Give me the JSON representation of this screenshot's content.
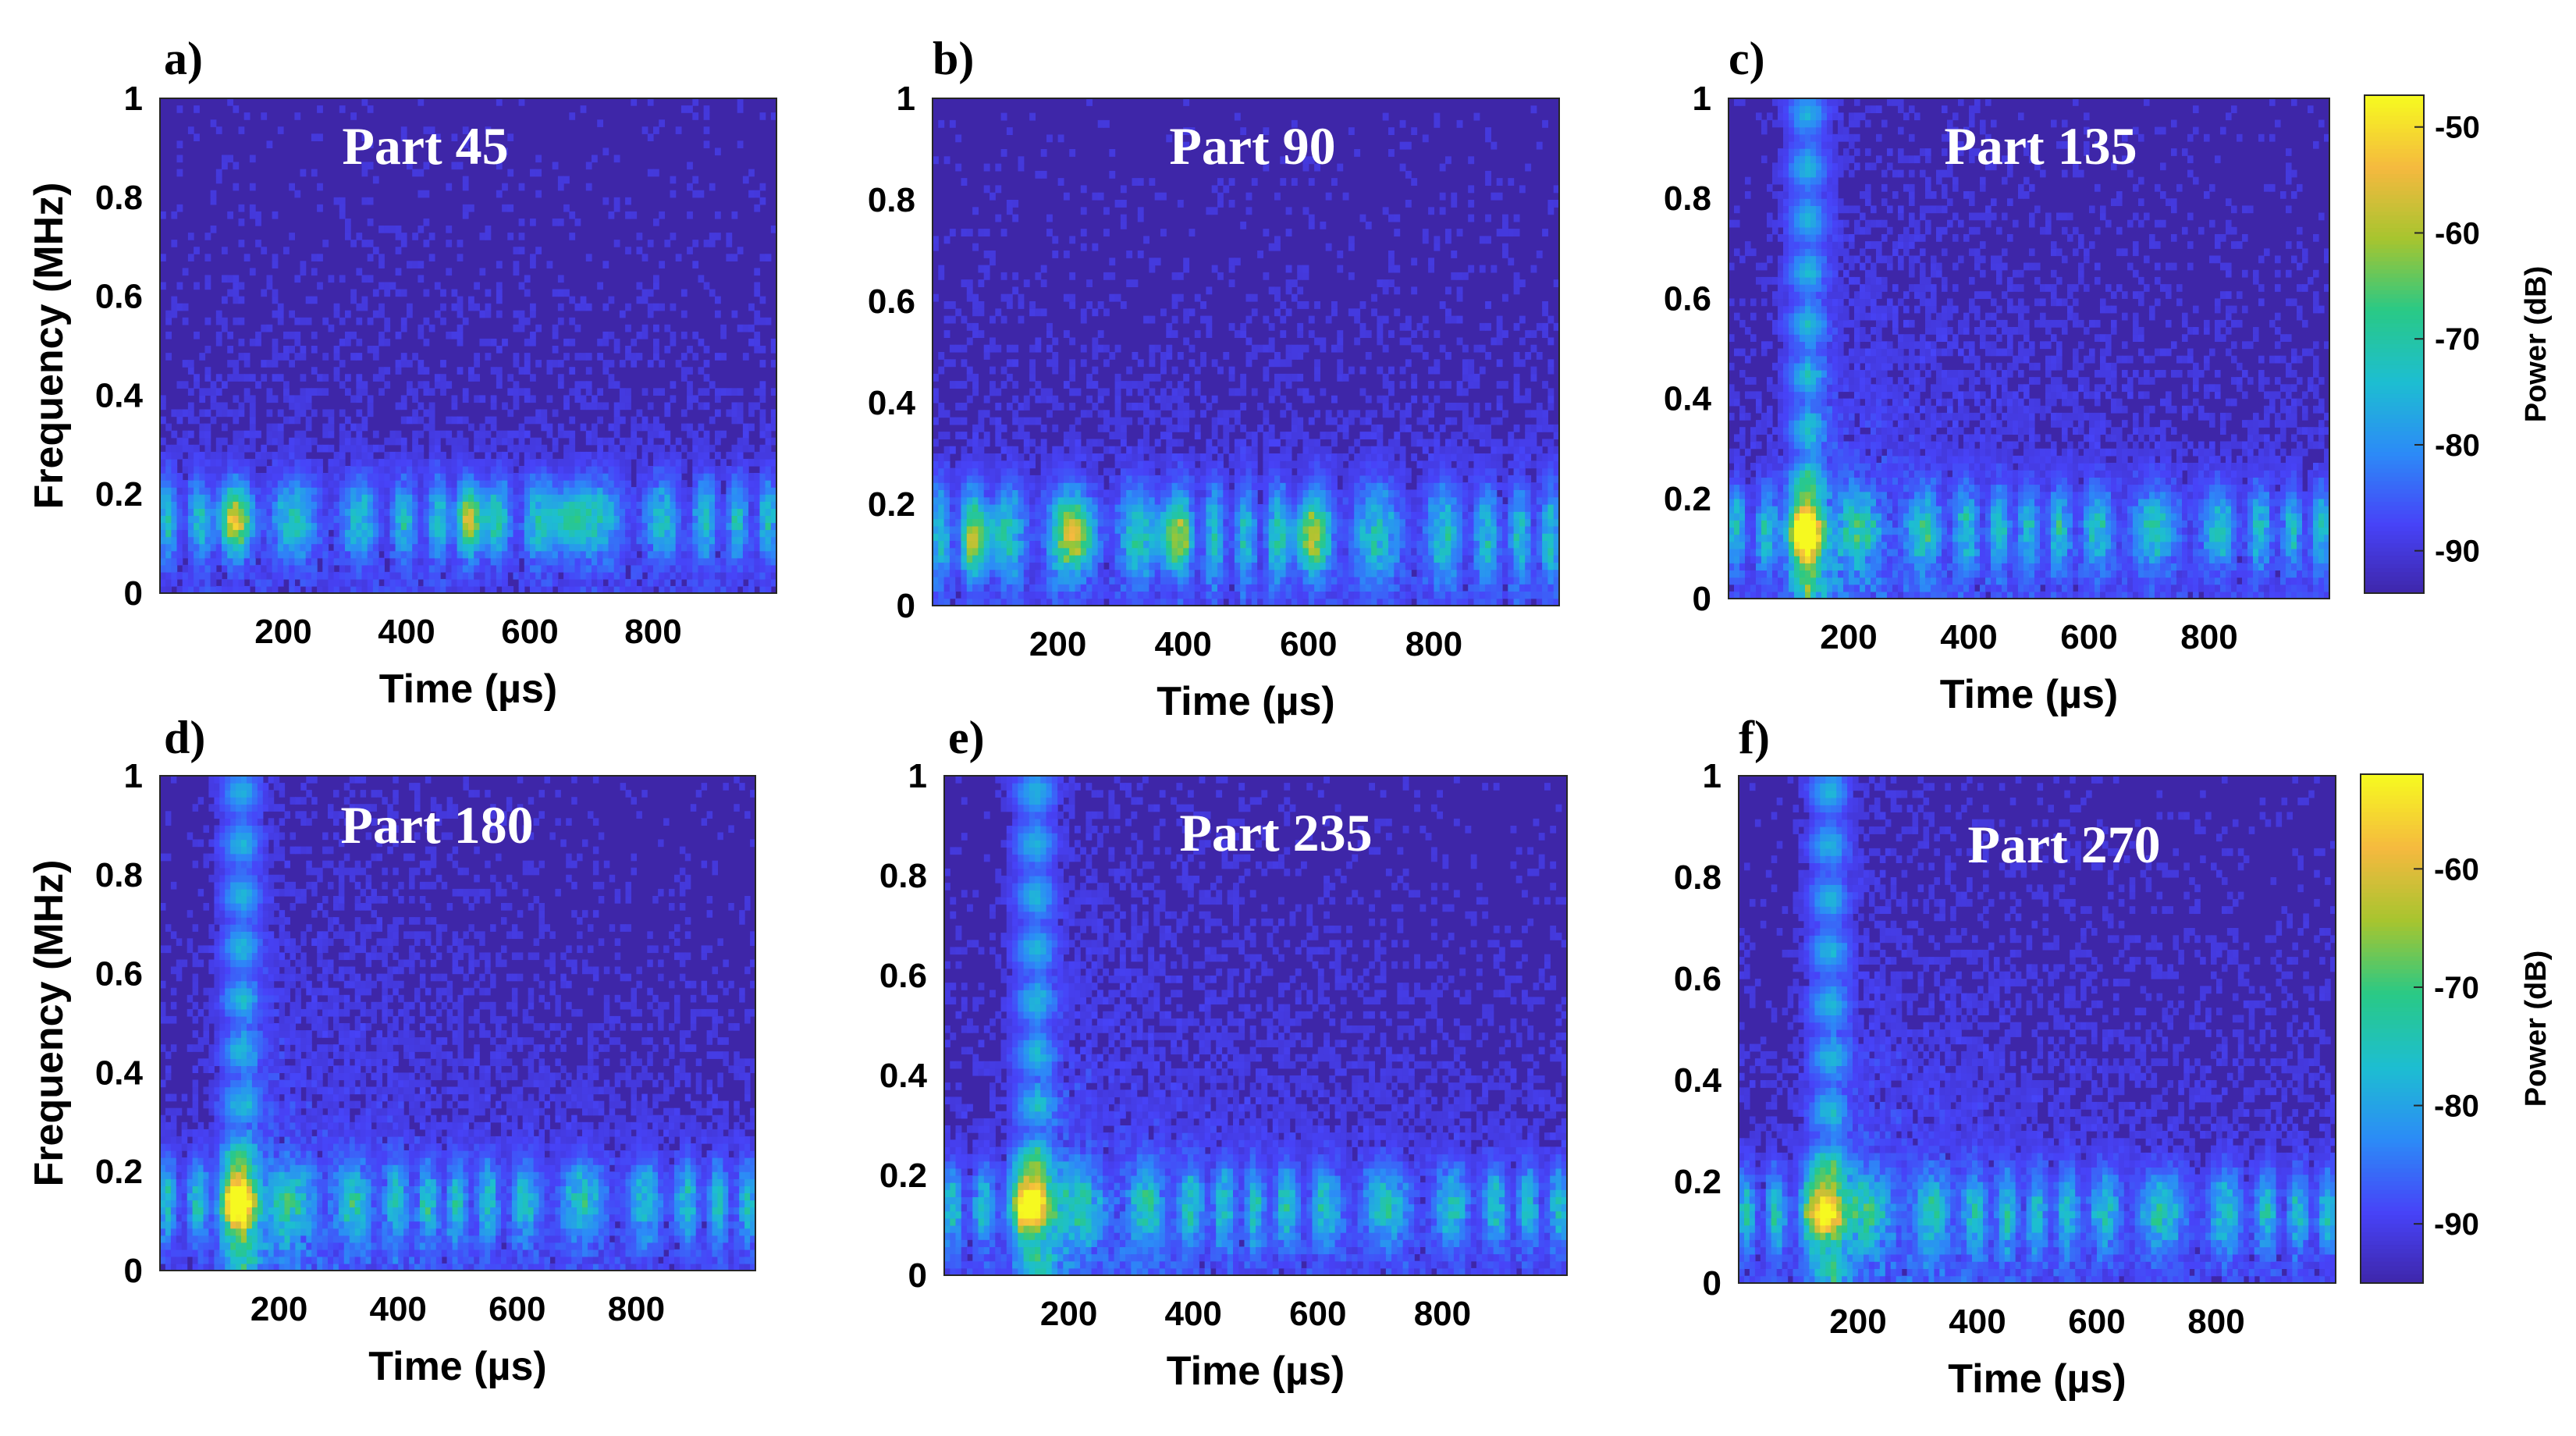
{
  "colormap": [
    "#3e26a8",
    "#4743f8",
    "#2c8bf7",
    "#1dbed1",
    "#29c986",
    "#a6c52f",
    "#f5b93f",
    "#f6f920"
  ],
  "chart_data": [
    {
      "type": "heatmap",
      "panel": "a)",
      "title": "Part 45",
      "xlabel": "Time (µs)",
      "ylabel": "Frequency (MHz)",
      "xlim": [
        0,
        1000
      ],
      "ylim": [
        0,
        1
      ],
      "xticks": [
        "200",
        "400",
        "600",
        "800"
      ],
      "yticks": [
        "0",
        "0.2",
        "0.4",
        "0.6",
        "0.8",
        "1"
      ],
      "series": [
        {
          "pattern": "band",
          "band_center_mhz": 0.15,
          "band_width_mhz": 0.08,
          "peak_time_us": 120
        },
        {
          "pattern": "hotspots",
          "times_us": [
            120,
            510,
            660
          ],
          "frequency_mhz": 0.15
        }
      ]
    },
    {
      "type": "heatmap",
      "panel": "b)",
      "title": "Part 90",
      "xlabel": "Time (µs)",
      "ylabel": "",
      "xlim": [
        0,
        1000
      ],
      "ylim": [
        0,
        1
      ],
      "xticks": [
        "200",
        "400",
        "600",
        "800"
      ],
      "yticks": [
        "0",
        "0.2",
        "0.4",
        "0.6",
        "0.8",
        "1"
      ],
      "series": [
        {
          "pattern": "band",
          "band_center_mhz": 0.14,
          "band_width_mhz": 0.1,
          "peak_time_us": 230
        },
        {
          "pattern": "hotspots",
          "times_us": [
            80,
            230,
            380,
            600
          ],
          "frequency_mhz": 0.14
        }
      ]
    },
    {
      "type": "heatmap",
      "panel": "c)",
      "title": "Part 135",
      "xlabel": "Time (µs)",
      "ylabel": "",
      "xlim": [
        0,
        1000
      ],
      "ylim": [
        0,
        1
      ],
      "xticks": [
        "200",
        "400",
        "600",
        "800"
      ],
      "yticks": [
        "0",
        "0.2",
        "0.4",
        "0.6",
        "0.8",
        "1"
      ],
      "series": [
        {
          "pattern": "burst",
          "burst_time_us": 130,
          "burst_frequency_mhz": 0.13
        },
        {
          "pattern": "band",
          "band_center_mhz": 0.14,
          "band_width_mhz": 0.08
        }
      ]
    },
    {
      "type": "heatmap",
      "panel": "d)",
      "title": "Part 180",
      "xlabel": "Time (µs)",
      "ylabel": "Frequency (MHz)",
      "xlim": [
        0,
        1000
      ],
      "ylim": [
        0,
        1
      ],
      "xticks": [
        "200",
        "400",
        "600",
        "800"
      ],
      "yticks": [
        "0",
        "0.2",
        "0.4",
        "0.6",
        "0.8",
        "1"
      ],
      "series": [
        {
          "pattern": "burst",
          "burst_time_us": 135,
          "burst_frequency_mhz": 0.14
        },
        {
          "pattern": "band",
          "band_center_mhz": 0.14,
          "band_width_mhz": 0.08
        }
      ]
    },
    {
      "type": "heatmap",
      "panel": "e)",
      "title": "Part 235",
      "xlabel": "Time (µs)",
      "ylabel": "",
      "xlim": [
        0,
        1000
      ],
      "ylim": [
        0,
        1
      ],
      "xticks": [
        "200",
        "400",
        "600",
        "800"
      ],
      "yticks": [
        "0",
        "0.2",
        "0.4",
        "0.6",
        "0.8",
        "1"
      ],
      "series": [
        {
          "pattern": "burst",
          "burst_time_us": 145,
          "burst_frequency_mhz": 0.15
        },
        {
          "pattern": "band",
          "band_center_mhz": 0.14,
          "band_width_mhz": 0.08
        }
      ]
    },
    {
      "type": "heatmap",
      "panel": "f)",
      "title": "Part 270",
      "xlabel": "Time (µs)",
      "ylabel": "",
      "xlim": [
        0,
        1000
      ],
      "ylim": [
        0,
        1
      ],
      "xticks": [
        "200",
        "400",
        "600",
        "800"
      ],
      "yticks": [
        "0",
        "0.2",
        "0.4",
        "0.6",
        "0.8",
        "1"
      ],
      "series": [
        {
          "pattern": "burst",
          "burst_time_us": 150,
          "burst_frequency_mhz": 0.15
        },
        {
          "pattern": "band",
          "band_center_mhz": 0.14,
          "band_width_mhz": 0.08
        }
      ]
    }
  ],
  "colorbars": [
    {
      "label": "Power (dB)",
      "range_db": [
        -94,
        -47
      ],
      "ticks": [
        "-50",
        "-60",
        "-70",
        "-80",
        "-90"
      ],
      "tick_values": [
        -50,
        -60,
        -70,
        -80,
        -90
      ]
    },
    {
      "label": "Power (dB)",
      "range_db": [
        -95,
        -52
      ],
      "ticks": [
        "-60",
        "-70",
        "-80",
        "-90"
      ],
      "tick_values": [
        -60,
        -70,
        -80,
        -90
      ]
    }
  ]
}
